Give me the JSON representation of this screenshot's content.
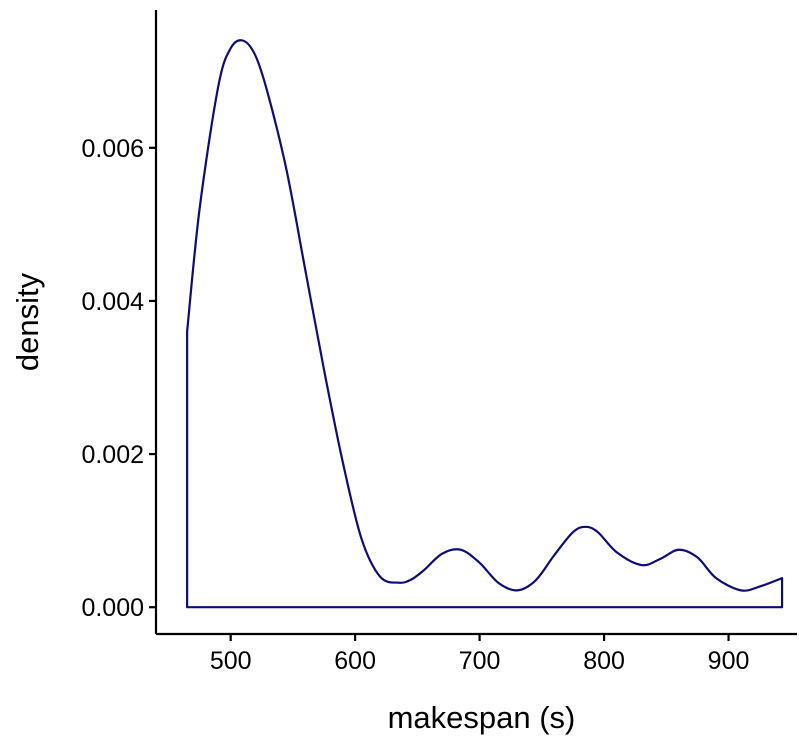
{
  "chart_data": {
    "type": "area",
    "title": "",
    "xlabel": "makespan (s)",
    "ylabel": "density",
    "xlim": [
      440,
      955
    ],
    "ylim": [
      -0.00035,
      0.0078
    ],
    "x_ticks": [
      500,
      600,
      700,
      800,
      900
    ],
    "x_tick_labels": [
      "500",
      "600",
      "700",
      "800",
      "900"
    ],
    "y_ticks": [
      0.0,
      0.002,
      0.004,
      0.006
    ],
    "y_tick_labels": [
      "0.000",
      "0.002",
      "0.004",
      "0.006"
    ],
    "grid": false,
    "legend": "none",
    "line_color": "#0c0c7a",
    "fill": "none",
    "series": [
      {
        "x": [
          465,
          475,
          490,
          500,
          510,
          520,
          530,
          545,
          560,
          575,
          590,
          605,
          620,
          635,
          645,
          655,
          670,
          685,
          700,
          715,
          730,
          745,
          760,
          775,
          785,
          795,
          810,
          830,
          845,
          860,
          875,
          890,
          910,
          925,
          943
        ],
        "values": [
          0.0036,
          0.0052,
          0.0068,
          0.0073,
          0.0074,
          0.0072,
          0.0067,
          0.0057,
          0.0044,
          0.0031,
          0.0019,
          0.0009,
          0.0004,
          0.00032,
          0.00036,
          0.00048,
          0.0007,
          0.00075,
          0.00058,
          0.00032,
          0.00022,
          0.00035,
          0.00068,
          0.00098,
          0.00105,
          0.00098,
          0.00072,
          0.00055,
          0.00063,
          0.00075,
          0.00065,
          0.00038,
          0.00022,
          0.00027,
          0.00038
        ]
      }
    ]
  }
}
